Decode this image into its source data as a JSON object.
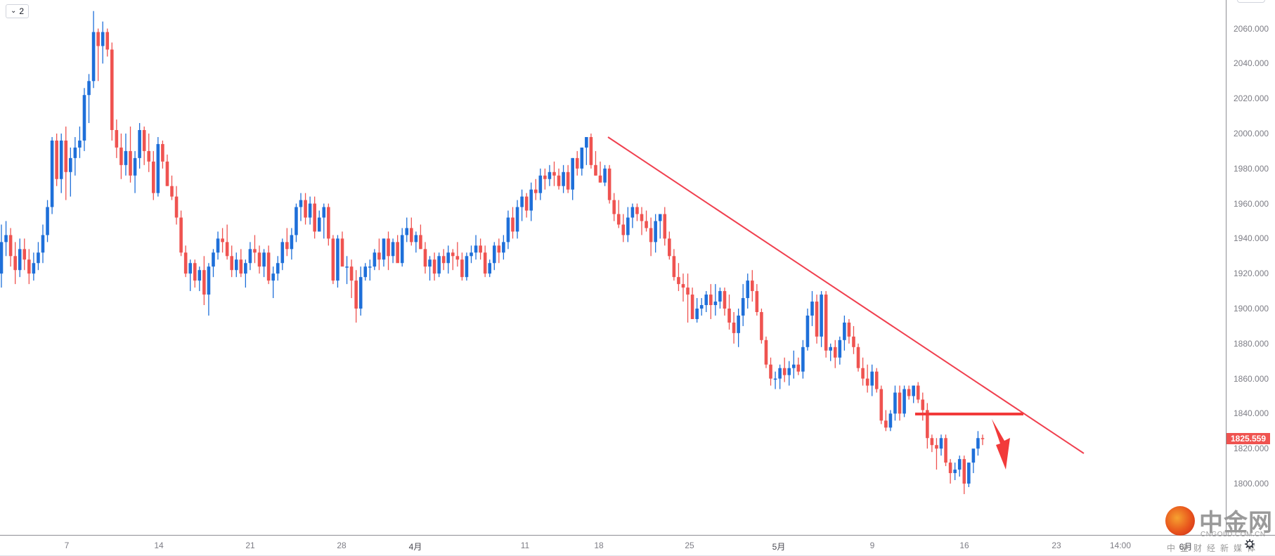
{
  "toolbar": {
    "collapse_badge_label": "2",
    "collapse_badge_icon": "chevron-down-icon"
  },
  "price_axis": {
    "labels": [
      "2060.000",
      "2040.000",
      "2020.000",
      "2000.000",
      "1980.000",
      "1960.000",
      "1940.000",
      "1920.000",
      "1900.000",
      "1880.000",
      "1860.000",
      "1840.000",
      "1820.000",
      "1800.000"
    ],
    "current_price_label": "1825.559",
    "current_price_color": "#ef5350"
  },
  "time_axis": {
    "labels": [
      {
        "text": "7",
        "month": false
      },
      {
        "text": "14",
        "month": false
      },
      {
        "text": "21",
        "month": false
      },
      {
        "text": "28",
        "month": false
      },
      {
        "text": "4月",
        "month": true
      },
      {
        "text": "11",
        "month": false
      },
      {
        "text": "18",
        "month": false
      },
      {
        "text": "25",
        "month": false
      },
      {
        "text": "5月",
        "month": true
      },
      {
        "text": "9",
        "month": false
      },
      {
        "text": "16",
        "month": false
      },
      {
        "text": "23",
        "month": false
      },
      {
        "text": "14:00",
        "month": false
      },
      {
        "text": "6月",
        "month": true
      }
    ]
  },
  "watermark": {
    "title": "中金网",
    "url": "CNGOLD.COM.CN",
    "subtitle": "中金财经新媒体"
  },
  "colors": {
    "up": "#1e6fd9",
    "down": "#ef5350",
    "trendline": "#f0404f",
    "annotation": "#f23a3a",
    "axis_text": "#7d7d85"
  },
  "chart_data": {
    "type": "candlestick",
    "title": "",
    "xlabel": "",
    "ylabel": "",
    "ylim": [
      1790,
      2072
    ],
    "grid": false,
    "x_ticks": [
      "7",
      "14",
      "21",
      "28",
      "4月",
      "11",
      "18",
      "25",
      "5月",
      "9",
      "16",
      "23",
      "14:00",
      "6月"
    ],
    "y_ticks": [
      2060,
      2040,
      2020,
      2000,
      1980,
      1960,
      1940,
      1920,
      1900,
      1880,
      1860,
      1840,
      1820,
      1800
    ],
    "last_price": 1825.559,
    "ohlc": [
      [
        1920,
        1948,
        1912,
        1938
      ],
      [
        1938,
        1950,
        1930,
        1942
      ],
      [
        1942,
        1946,
        1924,
        1930
      ],
      [
        1930,
        1938,
        1914,
        1922
      ],
      [
        1922,
        1940,
        1918,
        1934
      ],
      [
        1934,
        1940,
        1922,
        1928
      ],
      [
        1928,
        1934,
        1914,
        1920
      ],
      [
        1920,
        1932,
        1916,
        1926
      ],
      [
        1926,
        1938,
        1922,
        1932
      ],
      [
        1932,
        1948,
        1926,
        1942
      ],
      [
        1942,
        1962,
        1938,
        1958
      ],
      [
        1958,
        1998,
        1954,
        1996
      ],
      [
        1996,
        2000,
        1970,
        1974
      ],
      [
        1974,
        2000,
        1966,
        1996
      ],
      [
        1996,
        2004,
        1962,
        1978
      ],
      [
        1978,
        1992,
        1964,
        1986
      ],
      [
        1986,
        1998,
        1976,
        1992
      ],
      [
        1992,
        2004,
        1986,
        1996
      ],
      [
        1996,
        2026,
        1990,
        2022
      ],
      [
        2022,
        2034,
        2006,
        2030
      ],
      [
        2030,
        2070,
        2026,
        2058
      ],
      [
        2058,
        2060,
        2030,
        2050
      ],
      [
        2050,
        2064,
        2040,
        2058
      ],
      [
        2058,
        2060,
        2044,
        2048
      ],
      [
        2048,
        2052,
        1996,
        2002
      ],
      [
        2002,
        2008,
        1986,
        1992
      ],
      [
        1992,
        2000,
        1974,
        1982
      ],
      [
        1982,
        2000,
        1976,
        1990
      ],
      [
        1990,
        2004,
        1972,
        1976
      ],
      [
        1976,
        1990,
        1966,
        1986
      ],
      [
        1986,
        2006,
        1980,
        2002
      ],
      [
        2002,
        2004,
        1982,
        1990
      ],
      [
        1990,
        2000,
        1978,
        1984
      ],
      [
        1984,
        1990,
        1962,
        1966
      ],
      [
        1966,
        1998,
        1964,
        1994
      ],
      [
        1994,
        1996,
        1980,
        1984
      ],
      [
        1984,
        1988,
        1970,
        1970
      ],
      [
        1970,
        1976,
        1962,
        1964
      ],
      [
        1964,
        1970,
        1948,
        1952
      ],
      [
        1952,
        1956,
        1930,
        1932
      ],
      [
        1932,
        1936,
        1918,
        1920
      ],
      [
        1920,
        1928,
        1910,
        1926
      ],
      [
        1926,
        1928,
        1912,
        1916
      ],
      [
        1916,
        1924,
        1910,
        1922
      ],
      [
        1922,
        1930,
        1902,
        1908
      ],
      [
        1908,
        1926,
        1896,
        1924
      ],
      [
        1924,
        1934,
        1918,
        1932
      ],
      [
        1932,
        1944,
        1928,
        1940
      ],
      [
        1940,
        1946,
        1932,
        1938
      ],
      [
        1938,
        1948,
        1928,
        1930
      ],
      [
        1930,
        1936,
        1918,
        1922
      ],
      [
        1922,
        1932,
        1918,
        1928
      ],
      [
        1928,
        1934,
        1918,
        1920
      ],
      [
        1920,
        1928,
        1912,
        1926
      ],
      [
        1926,
        1938,
        1922,
        1934
      ],
      [
        1934,
        1942,
        1926,
        1932
      ],
      [
        1932,
        1936,
        1920,
        1924
      ],
      [
        1924,
        1934,
        1918,
        1932
      ],
      [
        1932,
        1936,
        1914,
        1916
      ],
      [
        1916,
        1924,
        1906,
        1920
      ],
      [
        1920,
        1930,
        1916,
        1926
      ],
      [
        1926,
        1940,
        1922,
        1938
      ],
      [
        1938,
        1946,
        1930,
        1934
      ],
      [
        1934,
        1946,
        1928,
        1942
      ],
      [
        1942,
        1960,
        1938,
        1958
      ],
      [
        1958,
        1966,
        1950,
        1962
      ],
      [
        1962,
        1966,
        1948,
        1952
      ],
      [
        1952,
        1964,
        1948,
        1960
      ],
      [
        1960,
        1964,
        1940,
        1944
      ],
      [
        1944,
        1956,
        1944,
        1952
      ],
      [
        1952,
        1960,
        1940,
        1958
      ],
      [
        1958,
        1960,
        1936,
        1940
      ],
      [
        1940,
        1942,
        1914,
        1916
      ],
      [
        1916,
        1942,
        1912,
        1940
      ],
      [
        1940,
        1944,
        1926,
        1924
      ],
      [
        1924,
        1930,
        1914,
        1924
      ],
      [
        1924,
        1928,
        1906,
        1916
      ],
      [
        1916,
        1922,
        1892,
        1900
      ],
      [
        1900,
        1924,
        1896,
        1918
      ],
      [
        1918,
        1926,
        1916,
        1924
      ],
      [
        1924,
        1928,
        1916,
        1924
      ],
      [
        1924,
        1934,
        1922,
        1932
      ],
      [
        1932,
        1940,
        1922,
        1928
      ],
      [
        1928,
        1940,
        1924,
        1940
      ],
      [
        1940,
        1944,
        1922,
        1930
      ],
      [
        1930,
        1940,
        1926,
        1938
      ],
      [
        1938,
        1942,
        1928,
        1926
      ],
      [
        1926,
        1946,
        1924,
        1942
      ],
      [
        1942,
        1952,
        1938,
        1946
      ],
      [
        1946,
        1952,
        1936,
        1938
      ],
      [
        1938,
        1944,
        1932,
        1942
      ],
      [
        1942,
        1948,
        1934,
        1934
      ],
      [
        1934,
        1938,
        1920,
        1924
      ],
      [
        1924,
        1930,
        1916,
        1928
      ],
      [
        1928,
        1932,
        1916,
        1920
      ],
      [
        1920,
        1932,
        1918,
        1930
      ],
      [
        1930,
        1934,
        1922,
        1926
      ],
      [
        1926,
        1936,
        1920,
        1932
      ],
      [
        1932,
        1934,
        1922,
        1930
      ],
      [
        1930,
        1938,
        1924,
        1928
      ],
      [
        1928,
        1932,
        1916,
        1918
      ],
      [
        1918,
        1932,
        1916,
        1930
      ],
      [
        1930,
        1936,
        1926,
        1932
      ],
      [
        1932,
        1942,
        1928,
        1936
      ],
      [
        1936,
        1940,
        1928,
        1932
      ],
      [
        1932,
        1936,
        1918,
        1920
      ],
      [
        1920,
        1928,
        1918,
        1926
      ],
      [
        1926,
        1938,
        1922,
        1936
      ],
      [
        1936,
        1940,
        1926,
        1932
      ],
      [
        1932,
        1942,
        1928,
        1938
      ],
      [
        1938,
        1956,
        1934,
        1952
      ],
      [
        1952,
        1958,
        1940,
        1944
      ],
      [
        1944,
        1962,
        1940,
        1958
      ],
      [
        1958,
        1968,
        1950,
        1964
      ],
      [
        1964,
        1966,
        1952,
        1956
      ],
      [
        1956,
        1972,
        1950,
        1968
      ],
      [
        1968,
        1974,
        1962,
        1966
      ],
      [
        1966,
        1980,
        1962,
        1976
      ],
      [
        1976,
        1980,
        1968,
        1974
      ],
      [
        1974,
        1982,
        1970,
        1978
      ],
      [
        1978,
        1984,
        1970,
        1976
      ],
      [
        1976,
        1980,
        1968,
        1970
      ],
      [
        1970,
        1982,
        1966,
        1978
      ],
      [
        1978,
        1982,
        1966,
        1968
      ],
      [
        1968,
        1986,
        1962,
        1986
      ],
      [
        1986,
        1990,
        1976,
        1980
      ],
      [
        1980,
        1988,
        1976,
        1992
      ],
      [
        1992,
        1996,
        1982,
        1998
      ],
      [
        1998,
        2000,
        1980,
        1982
      ],
      [
        1982,
        1990,
        1976,
        1976
      ],
      [
        1976,
        1984,
        1972,
        1972
      ],
      [
        1972,
        1982,
        1970,
        1980
      ],
      [
        1980,
        1982,
        1960,
        1962
      ],
      [
        1962,
        1966,
        1950,
        1954
      ],
      [
        1954,
        1962,
        1946,
        1948
      ],
      [
        1948,
        1954,
        1938,
        1942
      ],
      [
        1942,
        1958,
        1938,
        1952
      ],
      [
        1952,
        1960,
        1946,
        1958
      ],
      [
        1958,
        1960,
        1950,
        1954
      ],
      [
        1954,
        1958,
        1942,
        1950
      ],
      [
        1950,
        1956,
        1944,
        1946
      ],
      [
        1946,
        1952,
        1930,
        1938
      ],
      [
        1938,
        1954,
        1932,
        1950
      ],
      [
        1950,
        1954,
        1940,
        1954
      ],
      [
        1954,
        1958,
        1936,
        1940
      ],
      [
        1940,
        1944,
        1928,
        1930
      ],
      [
        1930,
        1934,
        1916,
        1918
      ],
      [
        1918,
        1926,
        1910,
        1914
      ],
      [
        1914,
        1920,
        1904,
        1912
      ],
      [
        1912,
        1920,
        1892,
        1908
      ],
      [
        1908,
        1912,
        1894,
        1894
      ],
      [
        1894,
        1906,
        1892,
        1900
      ],
      [
        1900,
        1906,
        1896,
        1902
      ],
      [
        1902,
        1910,
        1898,
        1908
      ],
      [
        1908,
        1914,
        1894,
        1902
      ],
      [
        1902,
        1914,
        1896,
        1904
      ],
      [
        1904,
        1912,
        1900,
        1910
      ],
      [
        1910,
        1912,
        1896,
        1900
      ],
      [
        1900,
        1908,
        1888,
        1892
      ],
      [
        1892,
        1898,
        1880,
        1886
      ],
      [
        1886,
        1900,
        1878,
        1896
      ],
      [
        1896,
        1914,
        1890,
        1906
      ],
      [
        1906,
        1920,
        1900,
        1916
      ],
      [
        1916,
        1922,
        1904,
        1910
      ],
      [
        1910,
        1914,
        1896,
        1898
      ],
      [
        1898,
        1900,
        1880,
        1882
      ],
      [
        1882,
        1884,
        1866,
        1868
      ],
      [
        1868,
        1872,
        1856,
        1860
      ],
      [
        1860,
        1864,
        1854,
        1860
      ],
      [
        1860,
        1868,
        1854,
        1866
      ],
      [
        1866,
        1872,
        1858,
        1862
      ],
      [
        1862,
        1870,
        1856,
        1866
      ],
      [
        1866,
        1876,
        1860,
        1868
      ],
      [
        1868,
        1872,
        1862,
        1864
      ],
      [
        1864,
        1882,
        1860,
        1878
      ],
      [
        1878,
        1900,
        1876,
        1896
      ],
      [
        1896,
        1910,
        1890,
        1904
      ],
      [
        1904,
        1908,
        1880,
        1884
      ],
      [
        1884,
        1910,
        1878,
        1908
      ],
      [
        1908,
        1910,
        1872,
        1876
      ],
      [
        1876,
        1880,
        1870,
        1878
      ],
      [
        1878,
        1882,
        1866,
        1872
      ],
      [
        1872,
        1884,
        1868,
        1882
      ],
      [
        1882,
        1896,
        1876,
        1892
      ],
      [
        1892,
        1894,
        1880,
        1884
      ],
      [
        1884,
        1890,
        1874,
        1878
      ],
      [
        1878,
        1880,
        1864,
        1866
      ],
      [
        1866,
        1872,
        1856,
        1860
      ],
      [
        1860,
        1868,
        1852,
        1856
      ],
      [
        1856,
        1868,
        1850,
        1864
      ],
      [
        1864,
        1866,
        1852,
        1854
      ],
      [
        1854,
        1856,
        1834,
        1836
      ],
      [
        1836,
        1842,
        1830,
        1832
      ],
      [
        1832,
        1842,
        1830,
        1840
      ],
      [
        1840,
        1856,
        1836,
        1852
      ],
      [
        1852,
        1856,
        1836,
        1840
      ],
      [
        1840,
        1856,
        1838,
        1854
      ],
      [
        1854,
        1856,
        1848,
        1850
      ],
      [
        1850,
        1856,
        1846,
        1856
      ],
      [
        1856,
        1858,
        1846,
        1848
      ],
      [
        1848,
        1852,
        1836,
        1842
      ],
      [
        1842,
        1846,
        1820,
        1826
      ],
      [
        1826,
        1828,
        1818,
        1822
      ],
      [
        1822,
        1826,
        1808,
        1820
      ],
      [
        1820,
        1828,
        1816,
        1826
      ],
      [
        1826,
        1828,
        1810,
        1812
      ],
      [
        1812,
        1814,
        1800,
        1806
      ],
      [
        1806,
        1812,
        1802,
        1808
      ],
      [
        1808,
        1816,
        1804,
        1814
      ],
      [
        1814,
        1816,
        1794,
        1800
      ],
      [
        1800,
        1812,
        1798,
        1812
      ],
      [
        1812,
        1818,
        1806,
        1820
      ],
      [
        1820,
        1830,
        1816,
        1826
      ],
      [
        1826,
        1828,
        1822,
        1825.559
      ]
    ]
  }
}
